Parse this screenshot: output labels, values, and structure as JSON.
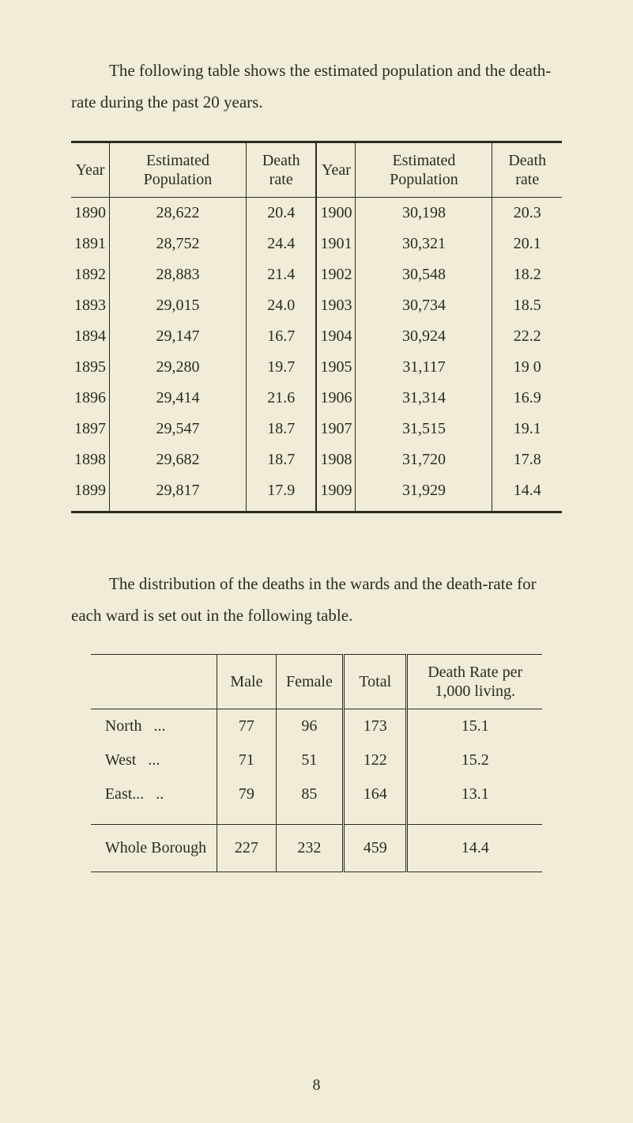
{
  "intro": "The following table shows the estimated population and the death-rate during the past 20 years.",
  "pop_table": {
    "headers": {
      "year": "Year",
      "est_pop": "Estimated Population",
      "death_rate": "Death rate"
    },
    "rows_left": [
      {
        "year": "1890",
        "pop": "28,622",
        "rate": "20.4"
      },
      {
        "year": "1891",
        "pop": "28,752",
        "rate": "24.4"
      },
      {
        "year": "1892",
        "pop": "28,883",
        "rate": "21.4"
      },
      {
        "year": "1893",
        "pop": "29,015",
        "rate": "24.0"
      },
      {
        "year": "1894",
        "pop": "29,147",
        "rate": "16.7"
      },
      {
        "year": "1895",
        "pop": "29,280",
        "rate": "19.7"
      },
      {
        "year": "1896",
        "pop": "29,414",
        "rate": "21.6"
      },
      {
        "year": "1897",
        "pop": "29,547",
        "rate": "18.7"
      },
      {
        "year": "1898",
        "pop": "29,682",
        "rate": "18.7"
      },
      {
        "year": "1899",
        "pop": "29,817",
        "rate": "17.9"
      }
    ],
    "rows_right": [
      {
        "year": "1900",
        "pop": "30,198",
        "rate": "20.3"
      },
      {
        "year": "1901",
        "pop": "30,321",
        "rate": "20.1"
      },
      {
        "year": "1902",
        "pop": "30,548",
        "rate": "18.2"
      },
      {
        "year": "1903",
        "pop": "30,734",
        "rate": "18.5"
      },
      {
        "year": "1904",
        "pop": "30,924",
        "rate": "22.2"
      },
      {
        "year": "1905",
        "pop": "31,117",
        "rate": "19 0"
      },
      {
        "year": "1906",
        "pop": "31,314",
        "rate": "16.9"
      },
      {
        "year": "1907",
        "pop": "31,515",
        "rate": "19.1"
      },
      {
        "year": "1908",
        "pop": "31,720",
        "rate": "17.8"
      },
      {
        "year": "1909",
        "pop": "31,929",
        "rate": "14.4"
      }
    ]
  },
  "mid": "The distribution of the deaths in the wards and the death-rate for each ward is set out in the following table.",
  "wards_table": {
    "headers": {
      "blank": "",
      "male": "Male",
      "female": "Female",
      "total": "Total",
      "rate": "Death Rate per 1,000 living."
    },
    "rows": [
      {
        "label": "North",
        "male": "77",
        "female": "96",
        "total": "173",
        "rate": "15.1"
      },
      {
        "label": "West",
        "male": "71",
        "female": "51",
        "total": "122",
        "rate": "15.2"
      },
      {
        "label": "East...",
        "male": "79",
        "female": "85",
        "total": "164",
        "rate": "13.1"
      }
    ],
    "total_row": {
      "label": "Whole Borough",
      "male": "227",
      "female": "232",
      "total": "459",
      "rate": "14.4"
    }
  },
  "page_number": "8"
}
